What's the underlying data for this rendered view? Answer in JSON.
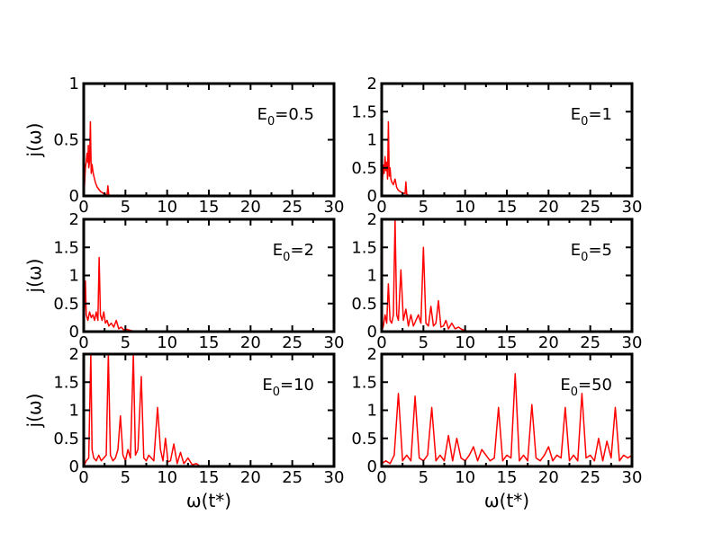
{
  "colors": {
    "series": "#ff0000",
    "axis": "#000000",
    "background": "#ffffff"
  },
  "chart_data": [
    {
      "type": "line",
      "label": {
        "base": "E",
        "sub": "0",
        "rest": "=0.5"
      },
      "xlabel": "",
      "ylabel": "j(ω)",
      "xlim": [
        0,
        30
      ],
      "ylim": [
        0,
        1
      ],
      "xticks": [
        "0",
        "5",
        "10",
        "15",
        "20",
        "25",
        "30"
      ],
      "yticks": [
        "0",
        "0.5",
        "1"
      ],
      "x": [
        0,
        0.1,
        0.2,
        0.3,
        0.4,
        0.5,
        0.55,
        0.6,
        0.7,
        0.8,
        0.9,
        1.0,
        1.1,
        1.2,
        1.4,
        1.6,
        1.8,
        2.0,
        2.2,
        2.4,
        2.6,
        2.8,
        2.9,
        3.0,
        3.1,
        3.3,
        3.6,
        4.0,
        30
      ],
      "y": [
        0,
        0.1,
        0.25,
        0.3,
        0.38,
        0.3,
        0.45,
        0.25,
        0.3,
        0.66,
        0.2,
        0.28,
        0.22,
        0.18,
        0.12,
        0.08,
        0.06,
        0.04,
        0.03,
        0.02,
        0.015,
        0.01,
        0.09,
        0.01,
        0.005,
        0.003,
        0,
        0,
        0
      ]
    },
    {
      "type": "line",
      "label": {
        "base": "E",
        "sub": "0",
        "rest": "=1"
      },
      "xlabel": "",
      "ylabel": "",
      "xlim": [
        0,
        30
      ],
      "ylim": [
        0,
        2
      ],
      "xticks": [
        "0",
        "5",
        "10",
        "15",
        "20",
        "25",
        "30"
      ],
      "yticks": [
        "0",
        "0.5",
        "1",
        "1.5",
        "2"
      ],
      "x": [
        0,
        0.1,
        0.2,
        0.3,
        0.4,
        0.5,
        0.6,
        0.7,
        0.8,
        0.9,
        1.0,
        1.1,
        1.2,
        1.4,
        1.6,
        1.8,
        2.0,
        2.2,
        2.4,
        2.6,
        2.8,
        2.9,
        3.0,
        3.2,
        3.5,
        4.0,
        30
      ],
      "y": [
        0,
        0.3,
        0.55,
        0.4,
        0.7,
        0.45,
        0.6,
        0.3,
        1.32,
        0.35,
        0.5,
        0.3,
        0.25,
        0.2,
        0.3,
        0.15,
        0.1,
        0.08,
        0.06,
        0.05,
        0.04,
        0.25,
        0.03,
        0.01,
        0.005,
        0,
        0
      ]
    },
    {
      "type": "line",
      "label": {
        "base": "E",
        "sub": "0",
        "rest": "=2"
      },
      "xlabel": "",
      "ylabel": "j(ω)",
      "xlim": [
        0,
        30
      ],
      "ylim": [
        0,
        2
      ],
      "xticks": [
        "0",
        "5",
        "10",
        "15",
        "20",
        "25",
        "30"
      ],
      "yticks": [
        "0",
        "0.5",
        "1",
        "1.5",
        "2"
      ],
      "x": [
        0,
        0.2,
        0.3,
        0.5,
        0.7,
        0.9,
        1.1,
        1.3,
        1.5,
        1.7,
        1.85,
        2.0,
        2.2,
        2.4,
        2.6,
        2.8,
        3.0,
        3.3,
        3.6,
        3.9,
        4.2,
        4.5,
        4.8,
        5.2,
        5.6,
        6.0,
        6.4,
        30
      ],
      "y": [
        0,
        0.9,
        0.3,
        0.2,
        0.35,
        0.25,
        0.3,
        0.2,
        0.35,
        0.2,
        1.32,
        0.3,
        0.2,
        0.35,
        0.15,
        0.2,
        0.1,
        0.15,
        0.08,
        0.2,
        0.05,
        0.08,
        0.03,
        0.04,
        0.02,
        0.01,
        0,
        0
      ]
    },
    {
      "type": "line",
      "label": {
        "base": "E",
        "sub": "0",
        "rest": "=5"
      },
      "xlabel": "",
      "ylabel": "",
      "xlim": [
        0,
        30
      ],
      "ylim": [
        0,
        2
      ],
      "xticks": [
        "0",
        "5",
        "10",
        "15",
        "20",
        "25",
        "30"
      ],
      "yticks": [
        "0",
        "0.5",
        "1",
        "1.5",
        "2"
      ],
      "x": [
        0,
        0.2,
        0.4,
        0.6,
        0.8,
        1.0,
        1.2,
        1.4,
        1.6,
        1.8,
        2.0,
        2.3,
        2.6,
        2.9,
        3.2,
        3.5,
        3.8,
        4.1,
        4.4,
        4.7,
        5.0,
        5.3,
        5.6,
        5.9,
        6.2,
        6.5,
        6.8,
        7.1,
        7.4,
        7.7,
        8.0,
        8.4,
        8.8,
        9.2,
        9.6,
        10.0,
        10.5,
        30
      ],
      "y": [
        0,
        0.1,
        0.3,
        0.15,
        0.85,
        0.2,
        0.15,
        0.3,
        2.0,
        0.3,
        0.2,
        1.1,
        0.2,
        0.4,
        0.1,
        0.3,
        0.1,
        0.2,
        0.3,
        0.15,
        1.5,
        0.15,
        0.1,
        0.45,
        0.1,
        0.15,
        0.55,
        0.08,
        0.1,
        0.2,
        0.05,
        0.15,
        0.05,
        0.08,
        0.04,
        0.02,
        0,
        0
      ]
    },
    {
      "type": "line",
      "label": {
        "base": "E",
        "sub": "0",
        "rest": "=10"
      },
      "xlabel": "ω(t*)",
      "ylabel": "j(ω)",
      "xlim": [
        0,
        30
      ],
      "ylim": [
        0,
        2
      ],
      "xticks": [
        "0",
        "5",
        "10",
        "15",
        "20",
        "25",
        "30"
      ],
      "yticks": [
        "0",
        "0.5",
        "1",
        "1.5",
        "2"
      ],
      "x": [
        0,
        0.3,
        0.6,
        0.85,
        1.0,
        1.2,
        1.5,
        1.8,
        2.1,
        2.4,
        2.7,
        2.95,
        3.2,
        3.5,
        3.8,
        4.1,
        4.4,
        4.7,
        5.0,
        5.3,
        5.6,
        5.95,
        6.2,
        6.5,
        6.9,
        7.2,
        7.5,
        7.8,
        8.1,
        8.4,
        8.85,
        9.2,
        9.5,
        9.8,
        10.1,
        10.4,
        10.8,
        11.2,
        11.6,
        12.0,
        12.5,
        13.0,
        13.5,
        14.0,
        30
      ],
      "y": [
        0,
        0.1,
        0.15,
        2.0,
        0.3,
        0.15,
        0.1,
        0.2,
        0.1,
        0.15,
        0.2,
        2.0,
        0.2,
        0.1,
        0.15,
        0.3,
        0.9,
        0.2,
        0.1,
        0.3,
        0.15,
        2.0,
        0.2,
        0.3,
        1.6,
        0.15,
        0.1,
        0.2,
        0.15,
        0.1,
        1.05,
        0.3,
        0.1,
        0.5,
        0.08,
        0.1,
        0.4,
        0.05,
        0.25,
        0.05,
        0.15,
        0.03,
        0.05,
        0,
        0
      ]
    },
    {
      "type": "line",
      "label": {
        "base": "E",
        "sub": "0",
        "rest": "=50"
      },
      "xlabel": "ω(t*)",
      "ylabel": "",
      "xlim": [
        0,
        30
      ],
      "ylim": [
        0,
        2
      ],
      "xticks": [
        "0",
        "5",
        "10",
        "15",
        "20",
        "25",
        "30"
      ],
      "yticks": [
        "0",
        "0.5",
        "1",
        "1.5",
        "2"
      ],
      "x": [
        0,
        0.5,
        1.0,
        1.5,
        2.0,
        2.5,
        3.0,
        3.5,
        4.0,
        4.5,
        5.0,
        5.5,
        6.0,
        6.5,
        7.0,
        7.5,
        8.0,
        8.5,
        9.0,
        9.5,
        10.0,
        10.5,
        11.0,
        11.5,
        12.0,
        12.5,
        13.0,
        13.5,
        14.0,
        14.5,
        15.0,
        15.5,
        16.0,
        16.5,
        17.0,
        17.5,
        18.0,
        18.5,
        19.0,
        19.5,
        20.0,
        20.5,
        21.0,
        21.5,
        22.0,
        22.5,
        23.0,
        23.5,
        24.0,
        24.5,
        25.0,
        25.5,
        26.0,
        26.5,
        27.0,
        27.5,
        28.0,
        28.5,
        29.0,
        29.5,
        30.0
      ],
      "y": [
        0.05,
        0.1,
        0.05,
        0.2,
        1.3,
        0.1,
        0.2,
        0.1,
        1.25,
        0.15,
        0.1,
        0.2,
        1.05,
        0.1,
        0.2,
        0.1,
        0.55,
        0.1,
        0.5,
        0.15,
        0.1,
        0.2,
        0.35,
        0.1,
        0.3,
        0.2,
        0.1,
        0.15,
        1.05,
        0.1,
        0.2,
        0.15,
        1.65,
        0.1,
        0.2,
        0.1,
        1.1,
        0.15,
        0.1,
        0.2,
        0.35,
        0.1,
        0.2,
        0.15,
        1.05,
        0.1,
        0.2,
        0.1,
        1.3,
        0.15,
        0.2,
        0.1,
        0.5,
        0.1,
        0.45,
        0.15,
        1.05,
        0.1,
        0.2,
        0.15,
        0.2
      ]
    }
  ]
}
